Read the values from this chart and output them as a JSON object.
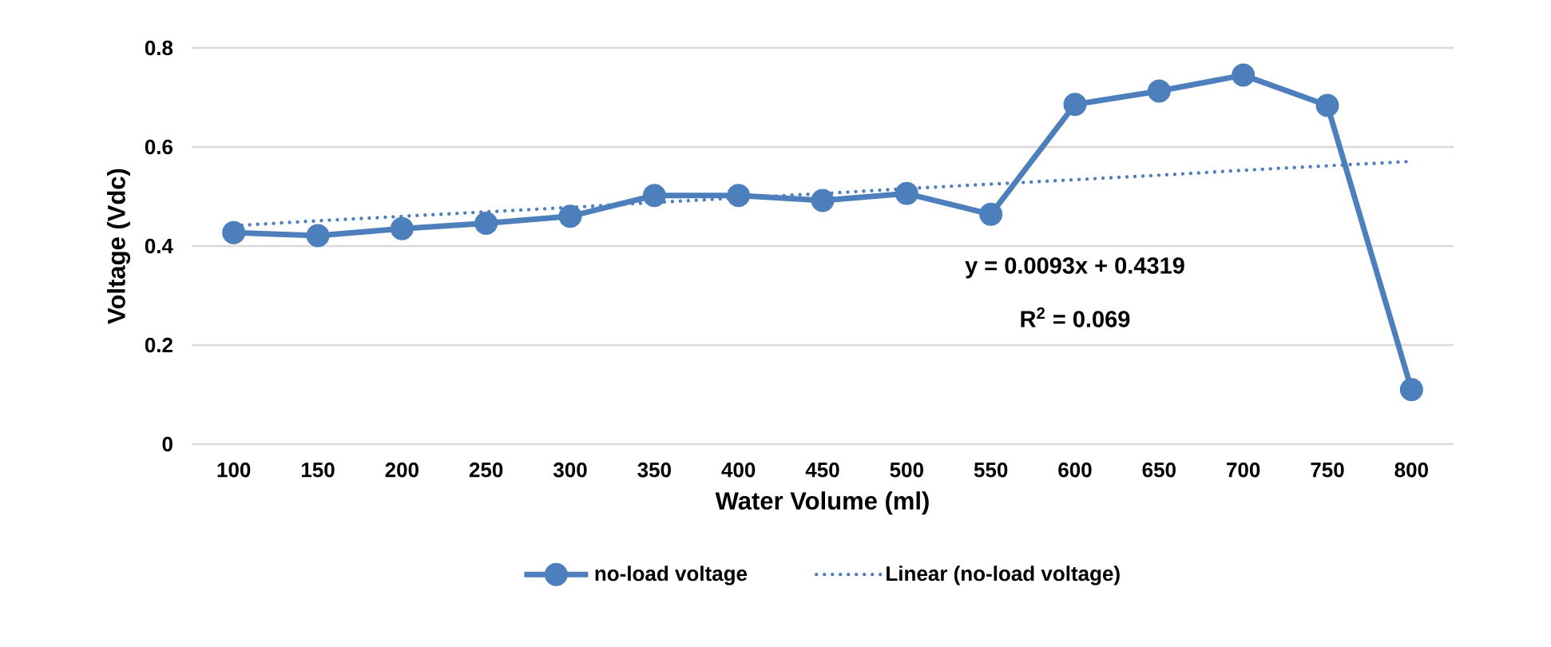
{
  "chart_data": {
    "type": "line",
    "xlabel": "Water Volume (ml)",
    "ylabel": "Voltage (Vdc)",
    "categories": [
      "100",
      "150",
      "200",
      "250",
      "300",
      "350",
      "400",
      "450",
      "500",
      "550",
      "600",
      "650",
      "700",
      "750",
      "800"
    ],
    "series": [
      {
        "name": "no-load voltage",
        "color": "#4e7fbd",
        "marker": "circle",
        "line_style": "solid",
        "values": [
          0.427,
          0.421,
          0.435,
          0.446,
          0.46,
          0.502,
          0.502,
          0.492,
          0.506,
          0.464,
          0.686,
          0.713,
          0.745,
          0.684,
          0.11
        ]
      },
      {
        "name": "Linear (no-load voltage)",
        "color": "#4e7fbd",
        "marker": "none",
        "line_style": "dotted",
        "values": [
          0.441,
          0.451,
          0.46,
          0.469,
          0.478,
          0.488,
          0.497,
          0.506,
          0.516,
          0.525,
          0.534,
          0.543,
          0.553,
          0.562,
          0.571
        ]
      }
    ],
    "ylim": [
      0,
      0.8
    ],
    "yticks": [
      0,
      0.2,
      0.4,
      0.6,
      0.8
    ],
    "grid": "y",
    "legend": "bottom",
    "annotations": [
      "y = 0.0093x + 0.4319",
      "R$^{2}$ = 0.069"
    ]
  }
}
